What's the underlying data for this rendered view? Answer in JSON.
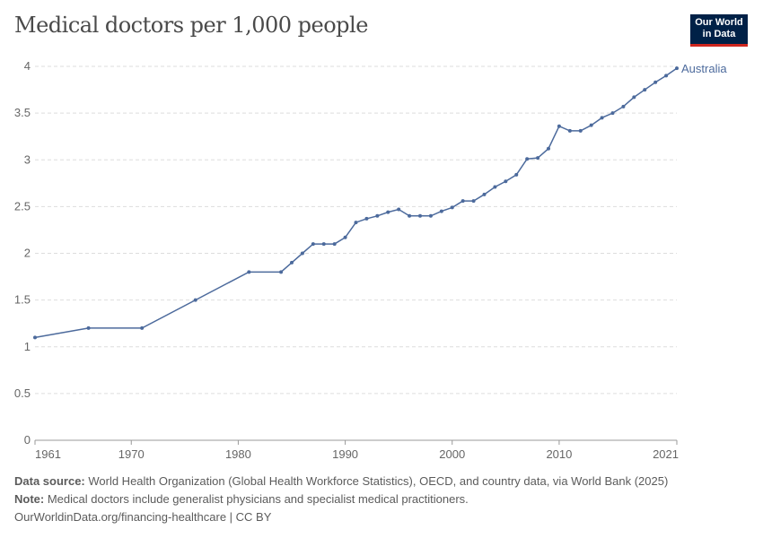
{
  "title": "Medical doctors per 1,000 people",
  "logo": {
    "line1": "Our World",
    "line2": "in Data"
  },
  "chart_data": {
    "type": "line",
    "title": "Medical doctors per 1,000 people",
    "xlim": [
      1961,
      2021
    ],
    "ylim": [
      0,
      4
    ],
    "x_ticks": [
      "1961",
      "1970",
      "1980",
      "1990",
      "2000",
      "2010",
      "2021"
    ],
    "y_ticks": [
      "0",
      "0.5",
      "1",
      "1.5",
      "2",
      "2.5",
      "3",
      "3.5",
      "4"
    ],
    "grid": true,
    "legend": "line-end label",
    "series": [
      {
        "name": "Australia",
        "color": "#4c6a9c",
        "x": [
          1961,
          1966,
          1971,
          1976,
          1981,
          1984,
          1985,
          1986,
          1987,
          1988,
          1989,
          1990,
          1991,
          1992,
          1993,
          1994,
          1995,
          1996,
          1997,
          1998,
          1999,
          2000,
          2001,
          2002,
          2003,
          2004,
          2005,
          2006,
          2007,
          2008,
          2009,
          2010,
          2011,
          2012,
          2013,
          2014,
          2015,
          2016,
          2017,
          2018,
          2019,
          2020,
          2021
        ],
        "values": [
          1.1,
          1.2,
          1.2,
          1.5,
          1.8,
          1.8,
          1.9,
          2.0,
          2.1,
          2.1,
          2.1,
          2.17,
          2.33,
          2.37,
          2.4,
          2.44,
          2.47,
          2.4,
          2.4,
          2.4,
          2.45,
          2.49,
          2.56,
          2.56,
          2.63,
          2.71,
          2.77,
          2.84,
          3.01,
          3.02,
          3.12,
          3.36,
          3.31,
          3.31,
          3.37,
          3.45,
          3.5,
          3.57,
          3.67,
          3.75,
          3.83,
          3.9,
          3.98
        ]
      }
    ]
  },
  "footer": {
    "source_label": "Data source:",
    "source_text": " World Health Organization (Global Health Workforce Statistics), OECD, and country data, via World Bank (2025)",
    "note_label": "Note:",
    "note_text": " Medical doctors include generalist physicians and specialist medical practitioners.",
    "link": "OurWorldinData.org/financing-healthcare | CC BY"
  }
}
